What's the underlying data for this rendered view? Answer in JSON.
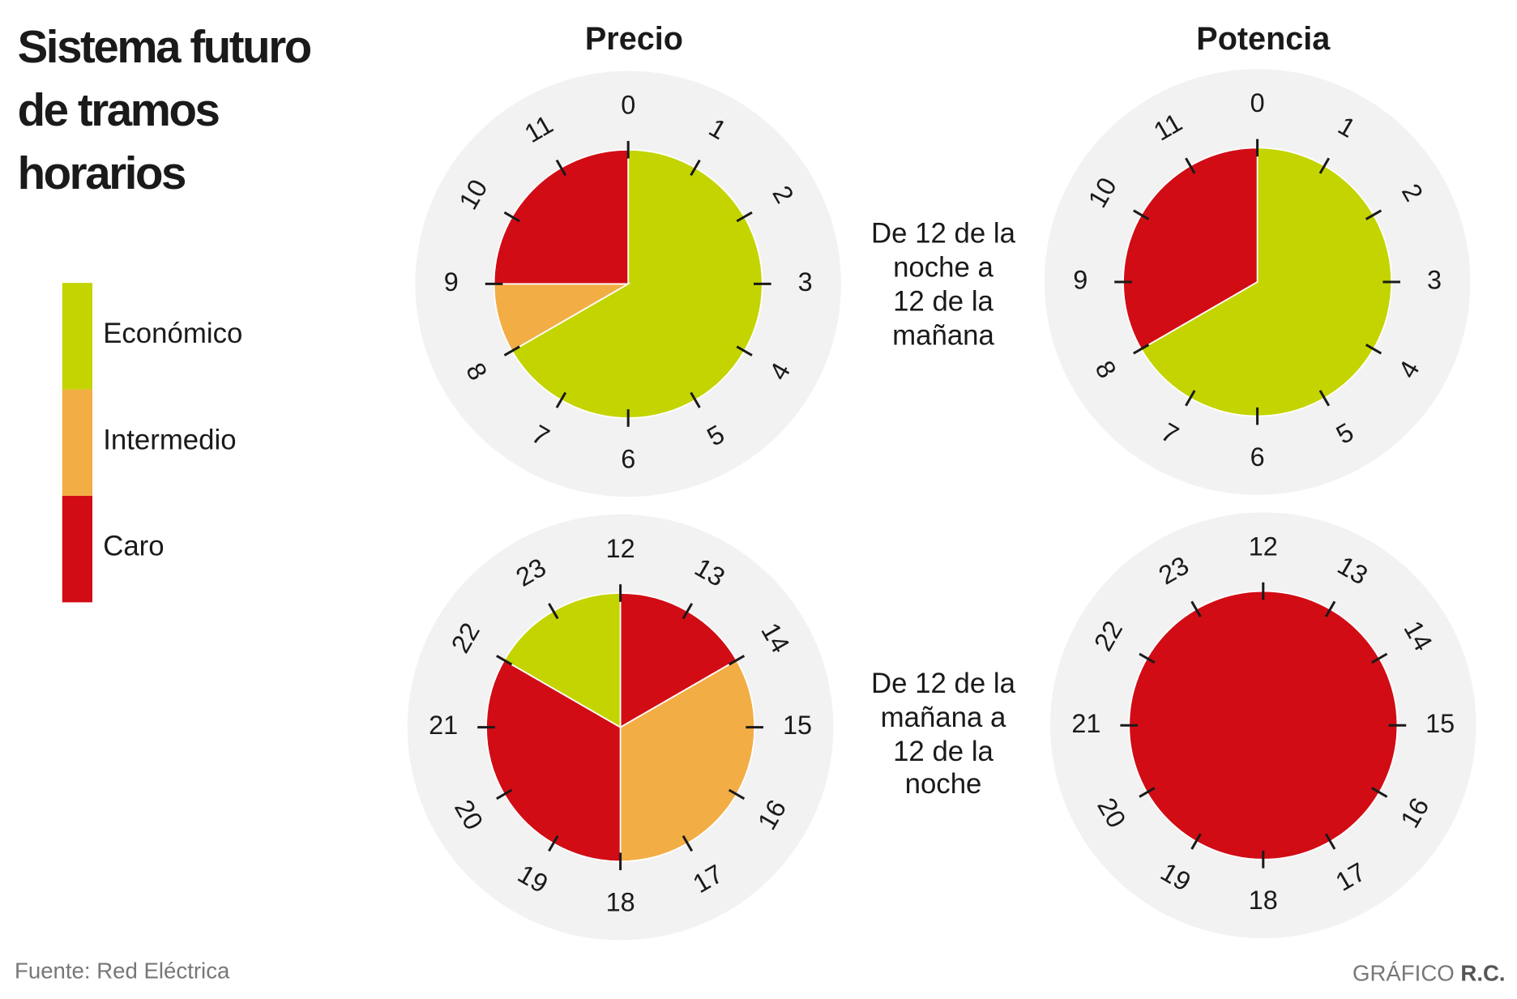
{
  "title": [
    "Sistema futuro",
    "de tramos",
    "horarios"
  ],
  "legend": [
    {
      "label": "Económico",
      "color": "#c3d400"
    },
    {
      "label": "Intermedio",
      "color": "#f2ad45"
    },
    {
      "label": "Caro",
      "color": "#d10c15"
    }
  ],
  "columns": [
    "Precio",
    "Potencia"
  ],
  "rows": [
    {
      "label": [
        "De 12 de la",
        "noche a",
        "12 de la",
        "mañana"
      ],
      "hours": [
        0,
        1,
        2,
        3,
        4,
        5,
        6,
        7,
        8,
        9,
        10,
        11
      ],
      "clocks": [
        {
          "segments": [
            {
              "from": 0,
              "to": 8,
              "color": "#c3d400"
            },
            {
              "from": 8,
              "to": 9,
              "color": "#f2ad45"
            },
            {
              "from": 9,
              "to": 12,
              "color": "#d10c15"
            }
          ]
        },
        {
          "segments": [
            {
              "from": 0,
              "to": 8,
              "color": "#c3d400"
            },
            {
              "from": 8,
              "to": 12,
              "color": "#d10c15"
            }
          ]
        }
      ]
    },
    {
      "label": [
        "De 12 de la",
        "mañana a",
        "12 de la",
        "noche"
      ],
      "hours": [
        12,
        13,
        14,
        15,
        16,
        17,
        18,
        19,
        20,
        21,
        22,
        23
      ],
      "clocks": [
        {
          "segments": [
            {
              "from": 12,
              "to": 14,
              "color": "#d10c15"
            },
            {
              "from": 14,
              "to": 18,
              "color": "#f2ad45"
            },
            {
              "from": 18,
              "to": 22,
              "color": "#d10c15"
            },
            {
              "from": 22,
              "to": 24,
              "color": "#c3d400"
            }
          ]
        },
        {
          "segments": [
            {
              "from": 12,
              "to": 24,
              "color": "#d10c15"
            }
          ]
        }
      ]
    }
  ],
  "source": "Fuente: Red Eléctrica",
  "credit": {
    "prefix": "GRÁFICO",
    "name": "R.C."
  }
}
